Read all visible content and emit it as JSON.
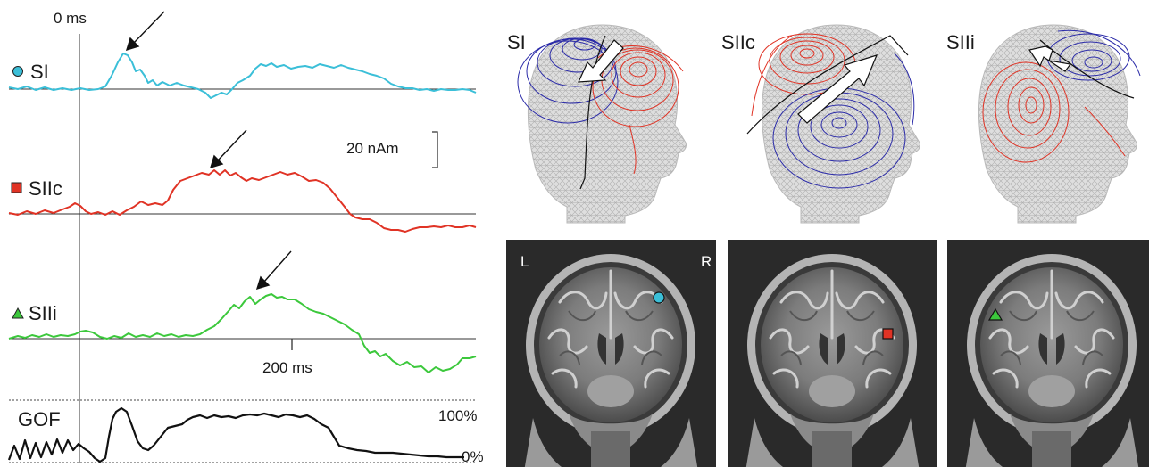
{
  "timecourse": {
    "zero_label": "0 ms",
    "scale_label": "20 nAm",
    "time_label": "200 ms",
    "gof_label": "GOF",
    "gof_max": "100%",
    "gof_min": "0%",
    "traces": [
      {
        "label": "SI",
        "marker": "circle",
        "color": "#3bbfd8"
      },
      {
        "label": "SIIc",
        "marker": "square",
        "color": "#e03325"
      },
      {
        "label": "SIIi",
        "marker": "triangle",
        "color": "#3cc83c"
      }
    ]
  },
  "field_maps": [
    {
      "label": "SI"
    },
    {
      "label": "SIIc"
    },
    {
      "label": "SIIi"
    }
  ],
  "mri": {
    "left_label": "L",
    "right_label": "R"
  },
  "colors": {
    "positive_contour": "#e03325",
    "negative_contour": "#2b2ba8",
    "head_mesh": "#c8c8c8",
    "mri_background": "#2a2a2a"
  }
}
